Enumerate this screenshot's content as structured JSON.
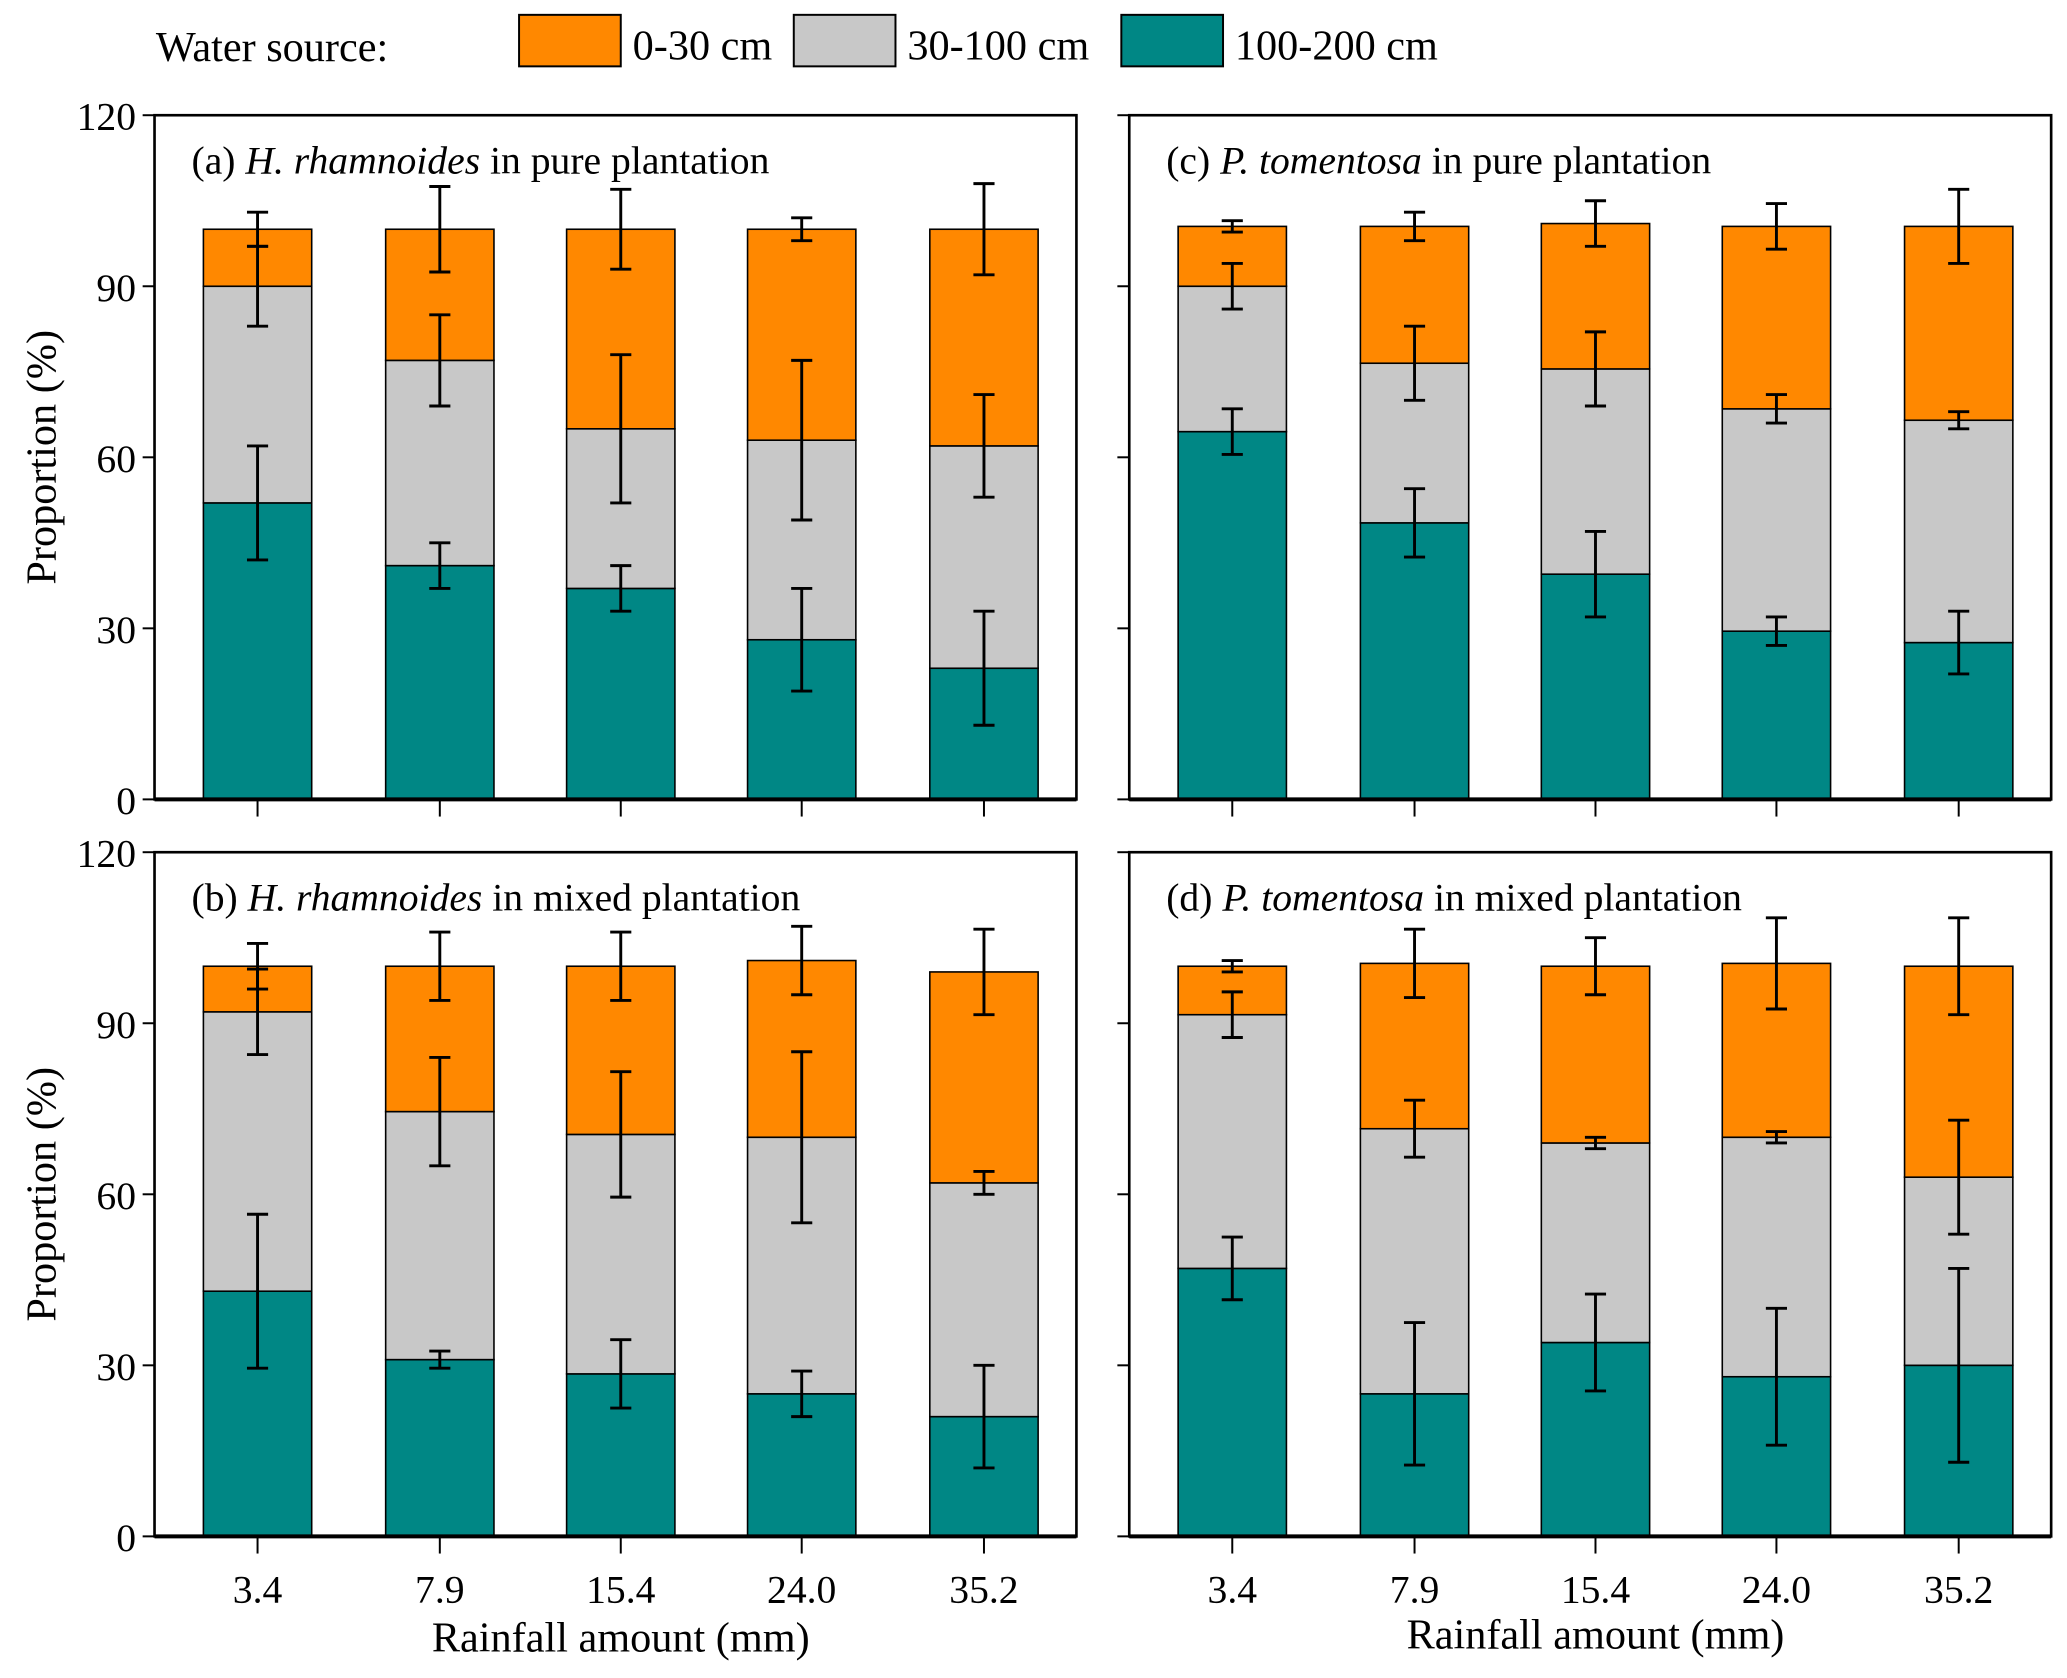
{
  "chart_data": {
    "type": "bar",
    "stacked": true,
    "legend": {
      "title": "Water source:",
      "placement": "top",
      "entries": [
        {
          "key": "shallow",
          "label": "0-30 cm",
          "color": "#FF8800"
        },
        {
          "key": "middle",
          "label": "30-100 cm",
          "color": "#C8C8C8"
        },
        {
          "key": "deep",
          "label": "100-200 cm",
          "color": "#008785"
        }
      ]
    },
    "categories": [
      "3.4",
      "7.9",
      "15.4",
      "24.0",
      "35.2"
    ],
    "xlabel": "Rainfall amount (mm)",
    "ylabel": "Proportion  (%)",
    "ylim": [
      0,
      120
    ],
    "yticks": [
      "0",
      "30",
      "60",
      "90",
      "120"
    ],
    "grid": false,
    "panels": [
      {
        "id": "a",
        "label": "(a)",
        "species": "H. rhamnoides",
        "suffix": "in pure plantation",
        "series": [
          {
            "name": "100-200 cm",
            "values": [
              52,
              41,
              37,
              28,
              23
            ],
            "errors": [
              10,
              4,
              4,
              9,
              10
            ]
          },
          {
            "name": "30-100 cm",
            "values": [
              38,
              36,
              28,
              35,
              39
            ],
            "errors": [
              7,
              8,
              13,
              14,
              9
            ]
          },
          {
            "name": "0-30 cm",
            "values": [
              10,
              23,
              35,
              37,
              38
            ],
            "errors": [
              3,
              7.5,
              7,
              2,
              8
            ]
          }
        ]
      },
      {
        "id": "c",
        "label": "(c)",
        "species": "P. tomentosa",
        "suffix": "in pure plantation",
        "series": [
          {
            "name": "100-200 cm",
            "values": [
              64.5,
              48.5,
              39.5,
              29.5,
              27.5
            ],
            "errors": [
              4,
              6,
              7.5,
              2.5,
              5.5
            ]
          },
          {
            "name": "30-100 cm",
            "values": [
              25.5,
              28,
              36,
              39,
              39
            ],
            "errors": [
              4,
              6.5,
              6.5,
              2.5,
              1.5
            ]
          },
          {
            "name": "0-30 cm",
            "values": [
              10.5,
              24,
              25.5,
              32,
              34
            ],
            "errors": [
              1,
              2.5,
              4,
              4,
              6.5
            ]
          }
        ]
      },
      {
        "id": "b",
        "label": "(b)",
        "species": "H. rhamnoides",
        "suffix": "in mixed plantation",
        "series": [
          {
            "name": "100-200 cm",
            "values": [
              43,
              31,
              28.5,
              25,
              21
            ],
            "errors": [
              13.5,
              1.5,
              6,
              4,
              9
            ]
          },
          {
            "name": "30-100 cm",
            "values": [
              49,
              43.5,
              42,
              45,
              41
            ],
            "errors": [
              7.5,
              9.5,
              11,
              15,
              2
            ]
          },
          {
            "name": "0-30 cm",
            "values": [
              8,
              25.5,
              29.5,
              31,
              37
            ],
            "errors": [
              4,
              6,
              6,
              6,
              7.5
            ]
          }
        ]
      },
      {
        "id": "d",
        "label": "(d)",
        "species": "P. tomentosa",
        "suffix": "in mixed plantation",
        "series": [
          {
            "name": "100-200 cm",
            "values": [
              47,
              25,
              34,
              28,
              30
            ],
            "errors": [
              5.5,
              12.5,
              8.5,
              12,
              17
            ]
          },
          {
            "name": "30-100 cm",
            "values": [
              44.5,
              46.5,
              35,
              42,
              33
            ],
            "errors": [
              4,
              5,
              1,
              1,
              10
            ]
          },
          {
            "name": "0-30 cm",
            "values": [
              8.5,
              29,
              31,
              30.5,
              37
            ],
            "errors": [
              1,
              6,
              5,
              8,
              8.5
            ]
          }
        ]
      }
    ]
  }
}
